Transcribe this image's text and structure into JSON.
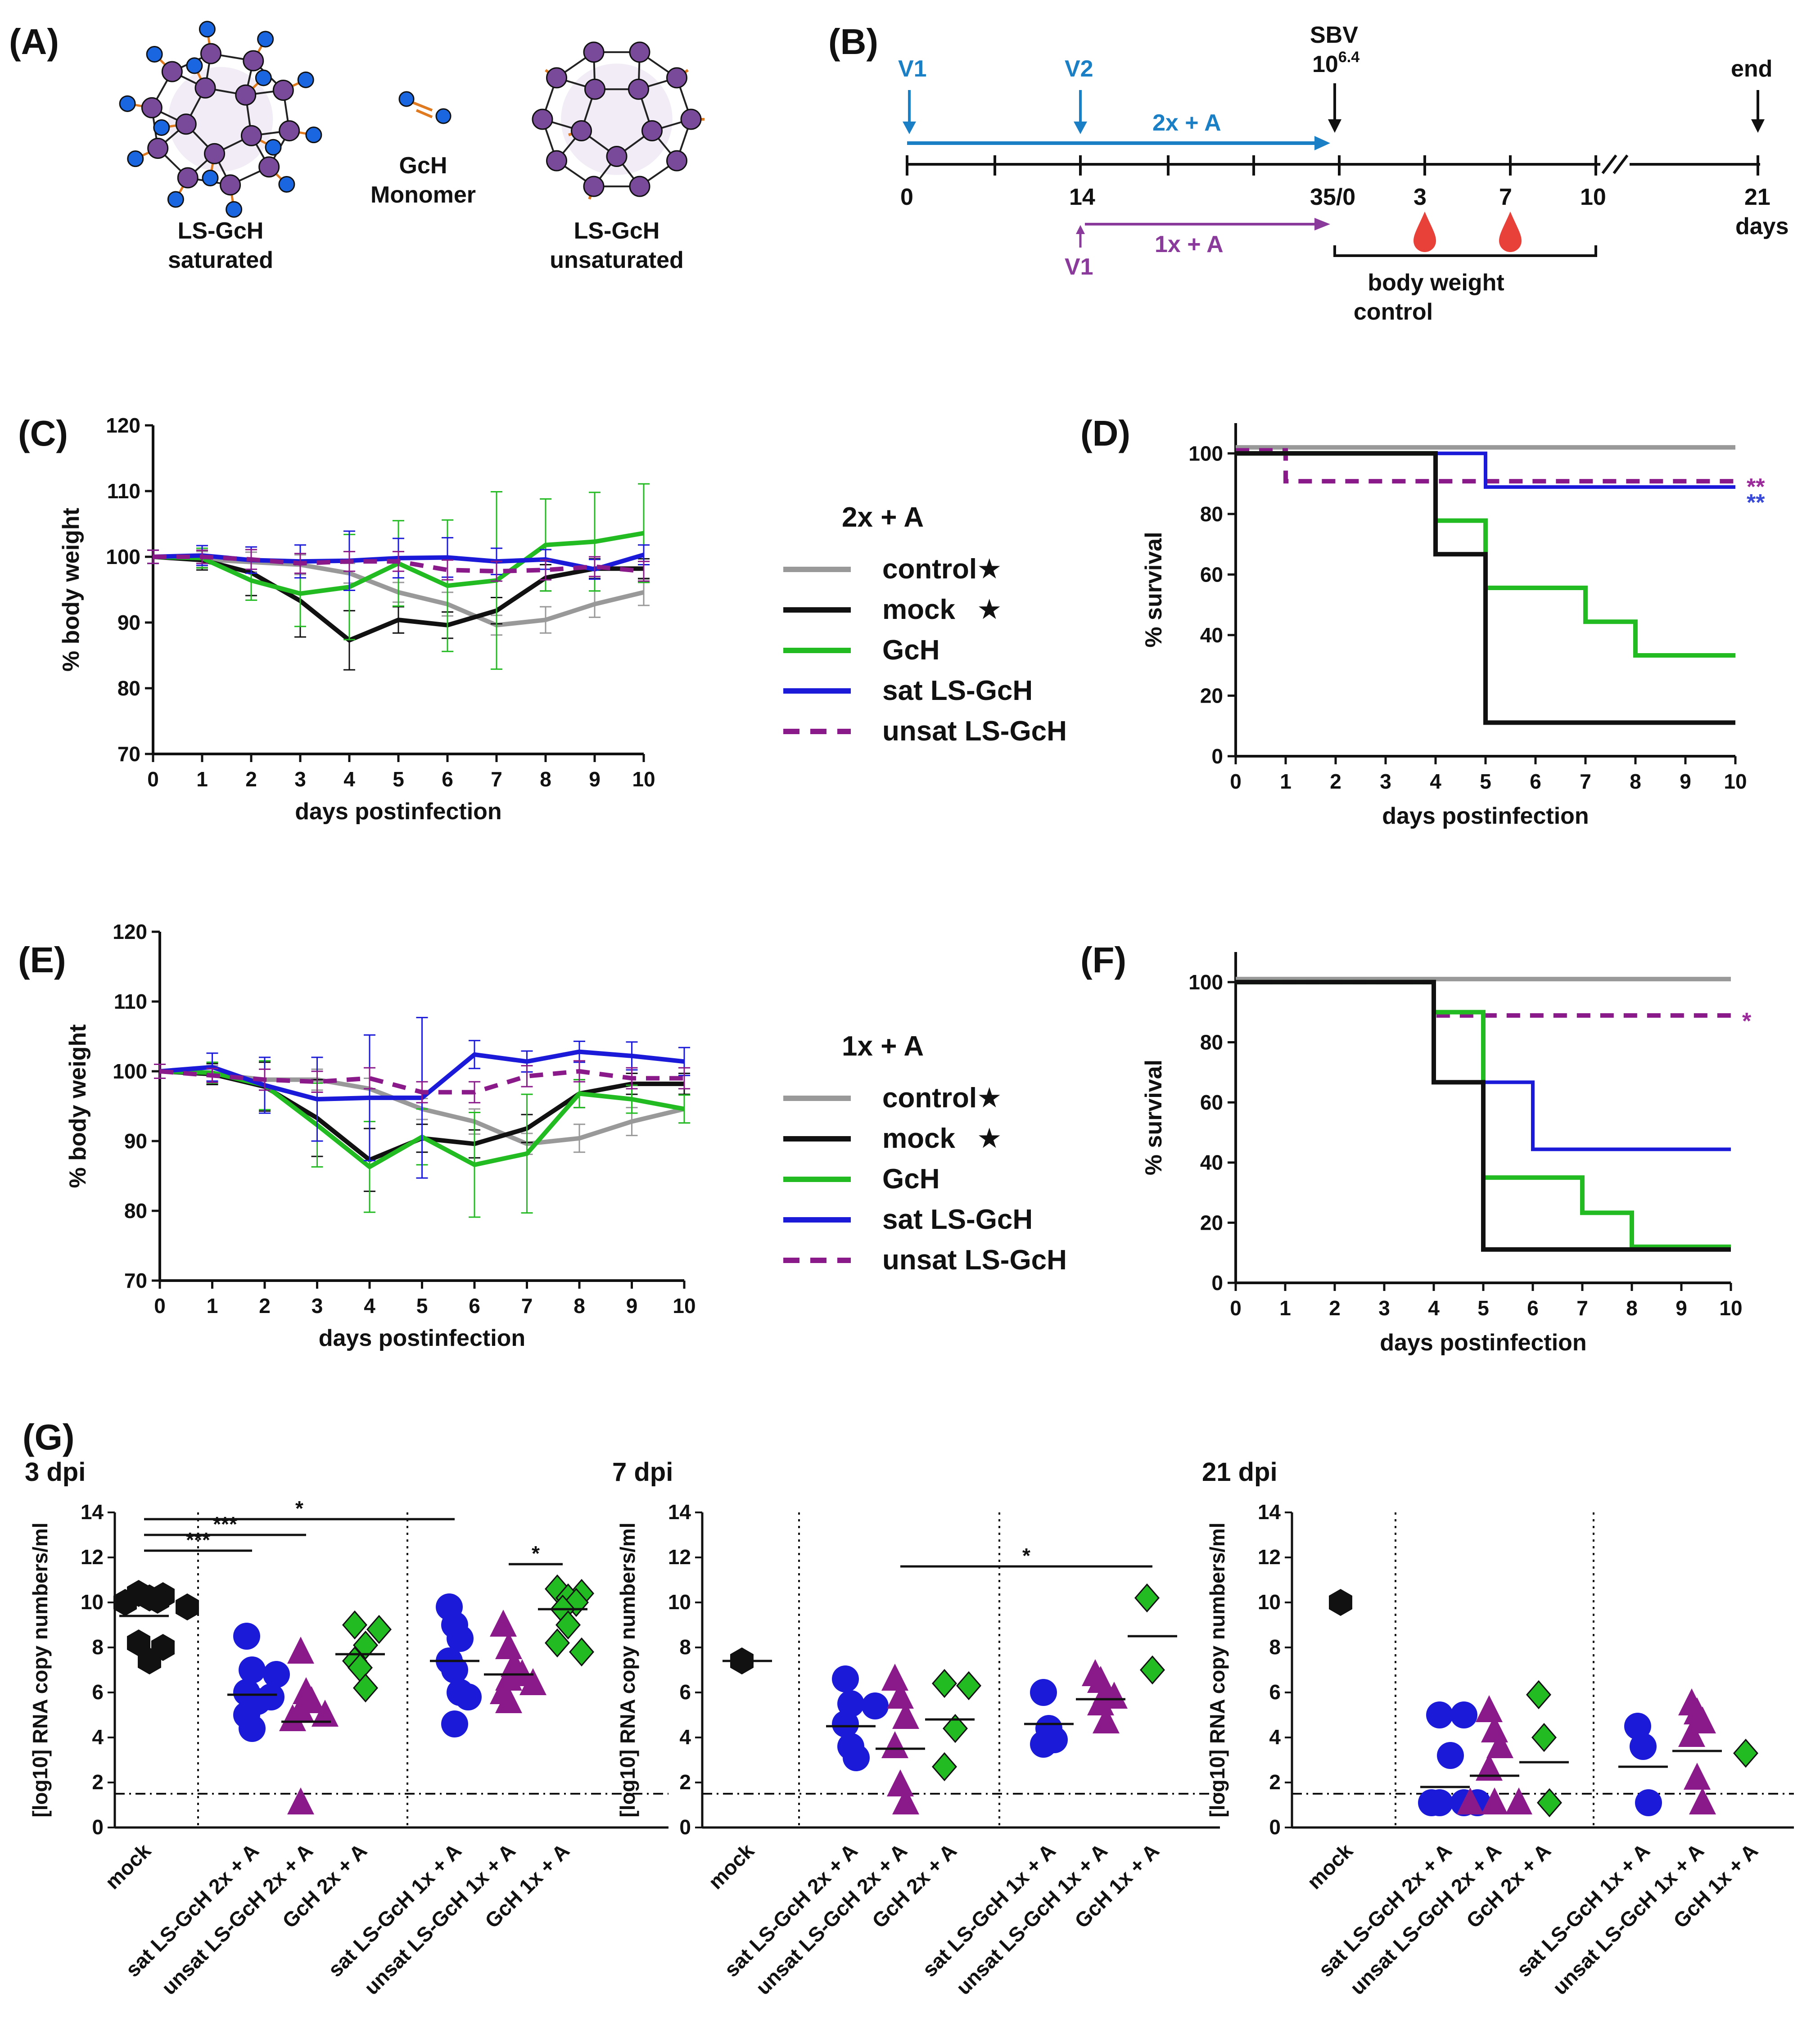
{
  "panel_labels": {
    "A": "(A)",
    "B": "(B)",
    "C": "(C)",
    "D": "(D)",
    "E": "(E)",
    "F": "(F)",
    "G": "(G)"
  },
  "panelA": {
    "saturated": [
      "LS-GcH",
      "saturated"
    ],
    "monomer": [
      "GcH",
      "Monomer"
    ],
    "unsaturated": [
      "LS-GcH",
      "unsaturated"
    ]
  },
  "panelB": {
    "v1": "V1",
    "v2": "V2",
    "sbv": "SBV",
    "dose_base": "10",
    "dose_exp": "6.4",
    "end": "end",
    "regimen_2x": "2x + A",
    "regimen_1x": "1x + A",
    "v1_1x": "V1",
    "ticks": [
      "0",
      "14",
      "35/0",
      "3",
      "7",
      "10",
      "21"
    ],
    "days": "days",
    "bw": [
      "body weight",
      "control"
    ]
  },
  "legends": [
    {
      "title": "2x + A",
      "items": [
        "control",
        "mock",
        "GcH",
        "sat LS-GcH",
        "unsat LS-GcH"
      ]
    },
    {
      "title": "1x + A",
      "items": [
        "control",
        "mock",
        "GcH",
        "sat LS-GcH",
        "unsat LS-GcH"
      ]
    }
  ],
  "colors": {
    "control": "#999999",
    "mock": "#111111",
    "GcH": "#22bb22",
    "sat": "#1a1ad8",
    "unsat": "#8a1a8a",
    "star_unsat": "#9b2a9b",
    "star_sat": "#3a4ad8",
    "drop": "#e8413a",
    "timeline_blue": "#1a7fc4",
    "timeline_purple": "#8a3a9a"
  },
  "star_symbol": "★",
  "chart_data": [
    {
      "id": "C",
      "type": "line",
      "ylabel": "% body weight",
      "xlabel": "days postinfection",
      "x": [
        0,
        1,
        2,
        3,
        4,
        5,
        6,
        7,
        8,
        9,
        10
      ],
      "xlim": [
        0,
        10
      ],
      "ylim": [
        70,
        120
      ],
      "yticks": [
        70,
        80,
        90,
        100,
        110,
        120
      ],
      "series": [
        {
          "name": "control",
          "values": [
            100,
            99.6,
            99.2,
            98.8,
            97.5,
            94.6,
            92.8,
            89.6,
            90.4,
            92.8,
            94.6
          ],
          "err": [
            1,
            1.2,
            1.5,
            1.5,
            1.5,
            1.5,
            1.8,
            1.5,
            2,
            2,
            2
          ]
        },
        {
          "name": "mock",
          "values": [
            100,
            99.5,
            97.6,
            93.3,
            87.3,
            90.4,
            89.6,
            91.8,
            96.8,
            98.2,
            98.2
          ],
          "err": [
            1,
            1.5,
            3.5,
            5.5,
            4.5,
            2,
            2,
            2,
            2,
            1.5,
            1.5
          ]
        },
        {
          "name": "GcH",
          "values": [
            100,
            99.8,
            96.4,
            94.4,
            95.4,
            99.0,
            95.6,
            96.4,
            101.8,
            102.3,
            103.6
          ],
          "err": [
            1,
            1.5,
            3,
            5,
            8,
            6.5,
            10,
            13.5,
            7,
            7.5,
            7.5
          ]
        },
        {
          "name": "sat LS-GcH",
          "values": [
            100,
            100.2,
            99.5,
            99.3,
            99.4,
            99.8,
            99.9,
            99.3,
            99.6,
            98.1,
            100.3
          ],
          "err": [
            1,
            1.5,
            2,
            2.5,
            4.5,
            3,
            3,
            2,
            1.5,
            1.5,
            1.5
          ]
        },
        {
          "name": "unsat LS-GcH",
          "values": [
            100,
            100.0,
            99.6,
            99.0,
            99.3,
            99.3,
            98.0,
            97.8,
            98.0,
            98.5,
            97.8
          ],
          "err": [
            1,
            1,
            1.5,
            1.5,
            1.5,
            1.5,
            1.5,
            1.5,
            1.5,
            1.5,
            1.5
          ]
        }
      ]
    },
    {
      "id": "D",
      "type": "step",
      "ylabel": "% survival",
      "xlabel": "days postinfection",
      "xlim": [
        0,
        10
      ],
      "ylim": [
        0,
        110
      ],
      "yticks": [
        0,
        20,
        40,
        60,
        80,
        100
      ],
      "xticks": [
        0,
        1,
        2,
        3,
        4,
        5,
        6,
        7,
        8,
        9,
        10
      ],
      "series": [
        {
          "name": "control",
          "x": [
            0,
            10
          ],
          "y": [
            102,
            102
          ]
        },
        {
          "name": "mock",
          "x": [
            0,
            4,
            5,
            10
          ],
          "y": [
            100,
            66.7,
            11.1,
            11.1
          ]
        },
        {
          "name": "GcH",
          "x": [
            0,
            4,
            5,
            7,
            8,
            10
          ],
          "y": [
            100,
            77.8,
            55.6,
            44.4,
            33.3,
            33.3
          ]
        },
        {
          "name": "sat LS-GcH",
          "x": [
            0,
            5,
            10
          ],
          "y": [
            100,
            88.9,
            88.9
          ]
        },
        {
          "name": "unsat LS-GcH",
          "x": [
            0,
            1,
            10
          ],
          "y": [
            101,
            90.8,
            90.8
          ]
        }
      ],
      "annotations": [
        {
          "text": "**",
          "series": "unsat LS-GcH"
        },
        {
          "text": "**",
          "series": "sat LS-GcH"
        }
      ]
    },
    {
      "id": "E",
      "type": "line",
      "ylabel": "% body weight",
      "xlabel": "days postinfection",
      "x": [
        0,
        1,
        2,
        3,
        4,
        5,
        6,
        7,
        8,
        9,
        10
      ],
      "xlim": [
        0,
        10
      ],
      "ylim": [
        70,
        120
      ],
      "yticks": [
        70,
        80,
        90,
        100,
        110,
        120
      ],
      "series": [
        {
          "name": "control",
          "values": [
            100,
            99.6,
            98.8,
            98.8,
            97.5,
            94.6,
            92.8,
            89.6,
            90.4,
            92.8,
            94.6
          ],
          "err": [
            1,
            1.2,
            1.5,
            1.5,
            1.5,
            1.5,
            1.8,
            1.5,
            2,
            2,
            2
          ]
        },
        {
          "name": "mock",
          "values": [
            100,
            99.6,
            97.8,
            93.3,
            87.3,
            90.4,
            89.6,
            91.8,
            96.8,
            98.2,
            98.2
          ],
          "err": [
            1,
            1.5,
            3.5,
            5.5,
            4.5,
            2,
            2,
            2,
            2,
            1.5,
            1.5
          ]
        },
        {
          "name": "GcH",
          "values": [
            100,
            99.8,
            98.0,
            92.3,
            86.3,
            90.6,
            86.6,
            88.2,
            96.8,
            96.0,
            94.6
          ],
          "err": [
            1,
            1.5,
            3.5,
            6,
            6.5,
            4,
            7.5,
            8.5,
            2,
            2,
            2
          ]
        },
        {
          "name": "sat LS-GcH",
          "values": [
            100,
            100.6,
            98.0,
            96.0,
            96.2,
            96.2,
            102.4,
            101.4,
            102.8,
            102.2,
            101.4
          ],
          "err": [
            1,
            2,
            4,
            6,
            9,
            11.5,
            2,
            1.5,
            1.5,
            2,
            2
          ]
        },
        {
          "name": "unsat LS-GcH",
          "values": [
            100,
            99.4,
            98.8,
            98.5,
            99.0,
            97.0,
            97.0,
            99.3,
            100.0,
            99.0,
            99.0
          ],
          "err": [
            1,
            1,
            1.5,
            1.5,
            1.5,
            1.5,
            1.5,
            1.5,
            1.5,
            1.5,
            1.5
          ]
        }
      ]
    },
    {
      "id": "F",
      "type": "step",
      "ylabel": "% survival",
      "xlabel": "days postinfection",
      "xlim": [
        0,
        10
      ],
      "ylim": [
        0,
        110
      ],
      "yticks": [
        0,
        20,
        40,
        60,
        80,
        100
      ],
      "xticks": [
        0,
        1,
        2,
        3,
        4,
        5,
        6,
        7,
        8,
        9,
        10
      ],
      "series": [
        {
          "name": "control",
          "x": [
            0,
            10
          ],
          "y": [
            101,
            101
          ]
        },
        {
          "name": "mock",
          "x": [
            0,
            4,
            5,
            10
          ],
          "y": [
            100,
            66.7,
            11.1,
            11.1
          ]
        },
        {
          "name": "GcH",
          "x": [
            0,
            4,
            5,
            7,
            8,
            10
          ],
          "y": [
            100,
            90,
            35,
            23.3,
            12,
            12
          ]
        },
        {
          "name": "sat LS-GcH",
          "x": [
            0,
            4,
            6,
            10
          ],
          "y": [
            100,
            66.7,
            44.4,
            44.4
          ]
        },
        {
          "name": "unsat LS-GcH",
          "x": [
            0,
            4,
            10
          ],
          "y": [
            100,
            88.9,
            88.9
          ]
        }
      ],
      "annotations": [
        {
          "text": "*",
          "series": "unsat LS-GcH"
        }
      ]
    },
    {
      "id": "G1",
      "type": "scatter",
      "title": "3 dpi",
      "ylabel": "[log10] RNA copy numbers/ml",
      "ylim": [
        0,
        14
      ],
      "yticks": [
        0,
        2,
        4,
        6,
        8,
        10,
        12,
        14
      ],
      "threshold": 1.5,
      "categories": [
        "mock",
        "sat LS-GcH 2x + A",
        "unsat LS-GcH 2x + A",
        "GcH 2x + A",
        "sat LS-GcH 1x + A",
        "unsat LS-GcH 1x + A",
        "GcH 1x + A"
      ],
      "groups": [
        {
          "cat": 0,
          "marker": "hexagon",
          "color": "mock",
          "points": [
            10.4,
            10.3,
            10.2,
            10.1,
            10.0,
            9.8,
            8.2,
            8.0,
            7.4
          ],
          "mean": 9.4
        },
        {
          "cat": 1,
          "marker": "circle",
          "color": "sat",
          "points": [
            8.5,
            7.0,
            6.8,
            6.0,
            5.8,
            5.6,
            5.0,
            4.4
          ],
          "mean": 5.9
        },
        {
          "cat": 2,
          "marker": "triangle",
          "color": "unsat",
          "points": [
            7.8,
            6.0,
            5.6,
            5.2,
            5.0,
            4.8,
            1.1
          ],
          "mean": 4.7
        },
        {
          "cat": 3,
          "marker": "diamond",
          "color": "GcH",
          "points": [
            9.0,
            8.8,
            8.1,
            7.4,
            7.1,
            6.2
          ],
          "mean": 7.7
        },
        {
          "cat": 4,
          "marker": "circle",
          "color": "sat",
          "points": [
            9.8,
            9.0,
            8.4,
            7.4,
            7.0,
            6.0,
            5.8,
            4.6
          ],
          "mean": 7.4
        },
        {
          "cat": 5,
          "marker": "triangle",
          "color": "unsat",
          "points": [
            9.0,
            8.0,
            7.2,
            6.8,
            6.6,
            6.4,
            6.0,
            5.6
          ],
          "mean": 6.8
        },
        {
          "cat": 6,
          "marker": "diamond",
          "color": "GcH",
          "points": [
            10.6,
            10.4,
            10.2,
            10.0,
            9.7,
            9.0,
            8.2,
            7.8
          ],
          "mean": 9.7
        }
      ],
      "sig": [
        {
          "from": 0,
          "to": 1,
          "label": "***",
          "y": 12.3
        },
        {
          "from": 0,
          "to": 2,
          "label": "***",
          "y": 13.0
        },
        {
          "from": 0,
          "to": 4,
          "label": "*",
          "y": 13.7
        },
        {
          "from": 5,
          "to": 6,
          "label": "*",
          "y": 11.7
        }
      ]
    },
    {
      "id": "G2",
      "type": "scatter",
      "title": "7 dpi",
      "ylabel": "[log10] RNA copy numbers/ml",
      "ylim": [
        0,
        14
      ],
      "yticks": [
        0,
        2,
        4,
        6,
        8,
        10,
        12,
        14
      ],
      "threshold": 1.5,
      "categories": [
        "mock",
        "sat LS-GcH 2x + A",
        "unsat LS-GcH 2x + A",
        "GcH 2x + A",
        "sat LS-GcH 1x + A",
        "unsat LS-GcH 1x + A",
        "GcH 1x + A"
      ],
      "groups": [
        {
          "cat": 0,
          "marker": "hexagon",
          "color": "mock",
          "points": [
            7.4
          ],
          "mean": 7.4
        },
        {
          "cat": 1,
          "marker": "circle",
          "color": "sat",
          "points": [
            6.6,
            5.5,
            5.4,
            4.6,
            3.6,
            3.1
          ],
          "mean": 4.5
        },
        {
          "cat": 2,
          "marker": "triangle",
          "color": "unsat",
          "points": [
            6.6,
            5.8,
            4.9,
            3.6,
            1.9,
            1.1
          ],
          "mean": 3.5
        },
        {
          "cat": 3,
          "marker": "diamond",
          "color": "GcH",
          "points": [
            6.4,
            6.3,
            4.4,
            2.7
          ],
          "mean": 4.8
        },
        {
          "cat": 4,
          "marker": "circle",
          "color": "sat",
          "points": [
            6.0,
            4.4,
            3.9,
            3.7
          ],
          "mean": 4.6
        },
        {
          "cat": 5,
          "marker": "triangle",
          "color": "unsat",
          "points": [
            6.8,
            6.5,
            6.0,
            5.8,
            5.5,
            4.7
          ],
          "mean": 5.7
        },
        {
          "cat": 6,
          "marker": "diamond",
          "color": "GcH",
          "points": [
            10.2,
            7.0
          ],
          "mean": 8.5
        }
      ],
      "sig": [
        {
          "from": 2,
          "to": 6,
          "label": "*",
          "y": 11.6
        }
      ]
    },
    {
      "id": "G3",
      "type": "scatter",
      "title": "21 dpi",
      "ylabel": "[log10] RNA copy numbers/ml",
      "ylim": [
        0,
        14
      ],
      "yticks": [
        0,
        2,
        4,
        6,
        8,
        10,
        12,
        14
      ],
      "threshold": 1.5,
      "categories": [
        "mock",
        "sat LS-GcH 2x + A",
        "unsat LS-GcH 2x + A",
        "GcH 2x + A",
        "sat LS-GcH 1x + A",
        "unsat LS-GcH 1x + A",
        "GcH 1x + A"
      ],
      "groups": [
        {
          "cat": 0,
          "marker": "hexagon",
          "color": "mock",
          "points": [
            10.0
          ],
          "mean": null
        },
        {
          "cat": 1,
          "marker": "circle",
          "color": "sat",
          "points": [
            5.0,
            5.0,
            3.2,
            1.1,
            1.1,
            1.1,
            1.1
          ],
          "mean": 1.8
        },
        {
          "cat": 2,
          "marker": "triangle",
          "color": "unsat",
          "points": [
            5.2,
            4.3,
            3.6,
            2.6,
            1.1,
            1.1,
            1.1
          ],
          "mean": 2.3
        },
        {
          "cat": 3,
          "marker": "diamond",
          "color": "GcH",
          "points": [
            5.9,
            4.0,
            1.1
          ],
          "mean": 2.9
        },
        {
          "cat": 4,
          "marker": "circle",
          "color": "sat",
          "points": [
            4.5,
            3.6,
            1.1
          ],
          "mean": 2.7
        },
        {
          "cat": 5,
          "marker": "triangle",
          "color": "unsat",
          "points": [
            5.5,
            5.1,
            4.7,
            4.1,
            2.2,
            1.1
          ],
          "mean": 3.4
        },
        {
          "cat": 6,
          "marker": "diamond",
          "color": "GcH",
          "points": [
            3.3
          ],
          "mean": null
        }
      ],
      "sig": []
    }
  ]
}
